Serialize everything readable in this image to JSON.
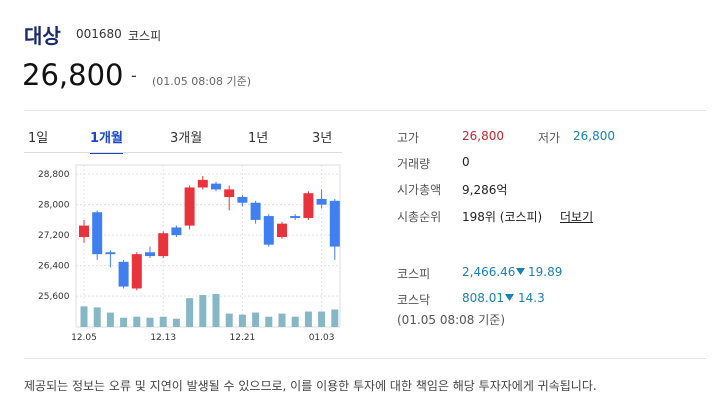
{
  "header": {
    "name": "대상",
    "code": "001680",
    "market": "코스피",
    "price": "26,800",
    "change": "-",
    "time": "(01.05 08:08 기준)"
  },
  "tabs": {
    "items": [
      "1일",
      "1개월",
      "3개월",
      "1년",
      "3년"
    ],
    "active": 1
  },
  "stats": {
    "high_label": "고가",
    "high": "26,800",
    "low_label": "저가",
    "low": "26,800",
    "volume_label": "거래량",
    "volume": "0",
    "cap_label": "시가총액",
    "cap": "9,286억",
    "rank_label": "시총순위",
    "rank": "198위 (코스피)",
    "more": "더보기"
  },
  "indices": {
    "kospi_label": "코스피",
    "kospi": "2,466.46",
    "kospi_change": "19.89",
    "kosdaq_label": "코스닥",
    "kosdaq": "808.01",
    "kosdaq_change": "14.3",
    "time": "(01.05 08:08 기준)"
  },
  "footer": "제공되는 정보는 오류 및 지연이 발생될 수 있으므로, 이를 이용한 투자에 대한 책임은 해당 투자자에게 귀속됩니다.",
  "chart_data": {
    "type": "candlestick",
    "up_color": "#e8323c",
    "down_color": "#3f7ff0",
    "volume_color": "#86b7c6",
    "categories": [
      "12.05",
      null,
      null,
      null,
      null,
      null,
      "12.13",
      null,
      null,
      null,
      null,
      null,
      "12.21",
      null,
      null,
      null,
      null,
      null,
      "01.03",
      null
    ],
    "open": [
      27150,
      27800,
      26750,
      26500,
      25800,
      26750,
      26650,
      27400,
      27450,
      28450,
      28550,
      28200,
      28200,
      28050,
      27700,
      27150,
      27700,
      27650,
      28150,
      28100
    ],
    "high": [
      27600,
      27850,
      26800,
      26550,
      26750,
      26900,
      27300,
      27450,
      28500,
      28750,
      28600,
      28500,
      28250,
      28100,
      27750,
      27550,
      27750,
      28350,
      28400,
      28150
    ],
    "low": [
      27000,
      26550,
      26350,
      25800,
      25750,
      26600,
      26600,
      27150,
      27350,
      28400,
      28350,
      27850,
      27950,
      27500,
      26900,
      27100,
      27600,
      27600,
      27900,
      26550
    ],
    "close": [
      27450,
      26700,
      26700,
      25850,
      26700,
      26650,
      27250,
      27200,
      28450,
      28650,
      28400,
      28400,
      28050,
      27600,
      26950,
      27500,
      27650,
      28300,
      28000,
      26900
    ],
    "volume": [
      20,
      19,
      14,
      9,
      10,
      9,
      10,
      8,
      28,
      31,
      32,
      13,
      12,
      14,
      10,
      13,
      10,
      15,
      15,
      17
    ],
    "ylim": [
      25550,
      29040
    ],
    "yticks": [
      {
        "value": 25600,
        "label": "25,600"
      },
      {
        "value": 26400,
        "label": "26,400"
      },
      {
        "value": 27200,
        "label": "27,200"
      },
      {
        "value": 28000,
        "label": "28,000"
      },
      {
        "value": 28800,
        "label": "28,800"
      }
    ],
    "grid": true
  }
}
